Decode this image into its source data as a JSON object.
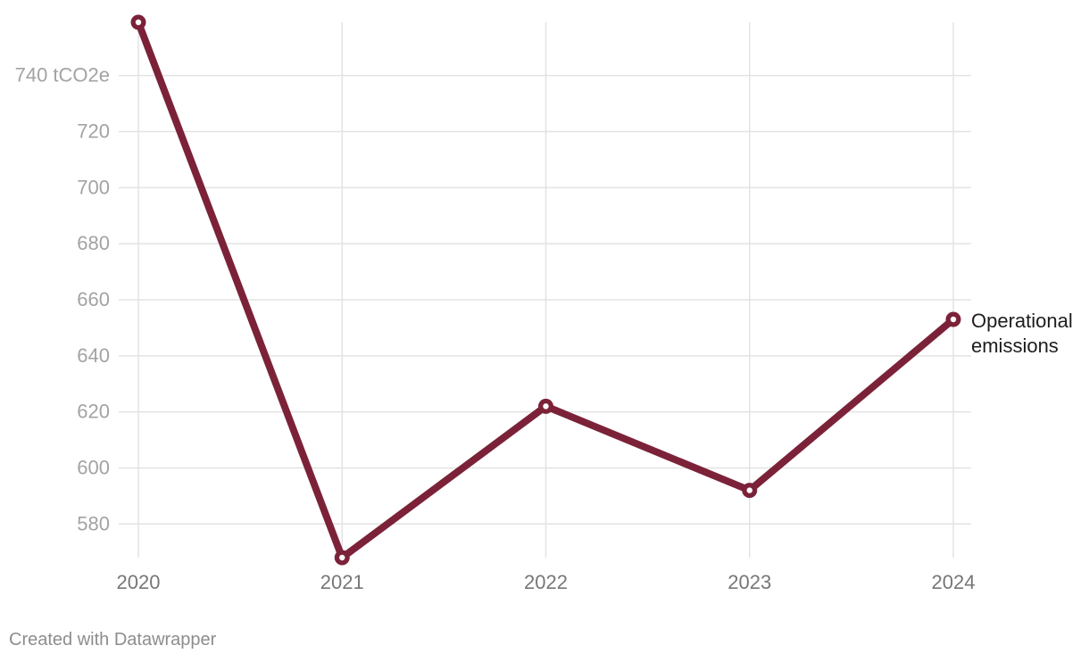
{
  "chart_data": {
    "type": "line",
    "x": [
      "2020",
      "2021",
      "2022",
      "2023",
      "2024"
    ],
    "series": [
      {
        "name": "Operational emissions",
        "label_lines": [
          "Operational",
          "emissions"
        ],
        "values": [
          759,
          568,
          622,
          592,
          653
        ],
        "color": "#7b2239"
      }
    ],
    "ylim": [
      568,
      759
    ],
    "yticks": [
      580,
      600,
      620,
      640,
      660,
      680,
      700,
      720,
      740
    ],
    "ytick_labels": [
      "580",
      "600",
      "620",
      "640",
      "660",
      "680",
      "700",
      "720",
      "740 tCO2e"
    ],
    "xlabel": "",
    "ylabel": "",
    "title": "",
    "grid": true,
    "legend": "end-of-line label"
  },
  "footer": {
    "credit": "Created with Datawrapper"
  },
  "colors": {
    "grid": "#e3e3e3",
    "tick_text": "#a3a3a3",
    "x_tick_text": "#777777",
    "series_label": "#1d1d1d",
    "background": "#ffffff"
  }
}
